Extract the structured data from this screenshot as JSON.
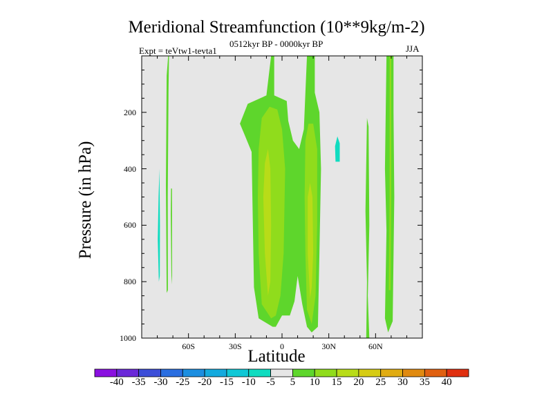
{
  "title": "Meridional Streamfunction (10**9kg/m-2)",
  "left_subtitle": "Expt = teVtw1-tevta1",
  "center_subtitle": "0512kyr BP - 0000kyr BP",
  "right_subtitle": "JJA",
  "chart_data": {
    "type": "heatmap",
    "title": "Meridional Streamfunction (10**9kg/m-2)",
    "xlabel": "Latitude",
    "ylabel": "Pressure (in hPa)",
    "xlim": [
      -90,
      90
    ],
    "ylim": [
      1000,
      0
    ],
    "xticks": [
      {
        "value": -60,
        "label": "60S"
      },
      {
        "value": -30,
        "label": "30S"
      },
      {
        "value": 0,
        "label": "0"
      },
      {
        "value": 30,
        "label": "30N"
      },
      {
        "value": 60,
        "label": "60N"
      }
    ],
    "yticks": [
      {
        "value": 200,
        "label": "200"
      },
      {
        "value": 400,
        "label": "400"
      },
      {
        "value": 600,
        "label": "600"
      },
      {
        "value": 800,
        "label": "800"
      },
      {
        "value": 1000,
        "label": "1000"
      }
    ],
    "background_color": "#e6e6e6",
    "colorbar": {
      "labels": [
        "-40",
        "-35",
        "-30",
        "-25",
        "-20",
        "-15",
        "-10",
        "-5",
        "5",
        "10",
        "15",
        "20",
        "25",
        "30",
        "35",
        "40"
      ],
      "colors": [
        "#8a10e0",
        "#6a28d8",
        "#3c4ed8",
        "#2a6ee0",
        "#1c8ee0",
        "#14aade",
        "#10c8d6",
        "#10dcc0",
        "#e6e6e6",
        "#5ed62c",
        "#90dc1c",
        "#b8dc18",
        "#d6cc14",
        "#e0ac12",
        "#e08a10",
        "#e06010",
        "#e03010"
      ]
    },
    "regions": [
      {
        "level": 5,
        "points": [
          [
            -74,
            840
          ],
          [
            -74.5,
            460
          ],
          [
            -74,
            70
          ],
          [
            -73,
            0
          ],
          [
            -72.5,
            0
          ],
          [
            -72.8,
            120
          ],
          [
            -73.3,
            500
          ],
          [
            -73.2,
            830
          ]
        ]
      },
      {
        "level": 5,
        "points": [
          [
            -71,
            760
          ],
          [
            -71.4,
            560
          ],
          [
            -71.2,
            470
          ],
          [
            -70.6,
            470
          ],
          [
            -70.5,
            780
          ],
          [
            -70.8,
            810
          ]
        ]
      },
      {
        "level": 5,
        "points": [
          [
            -6,
            960
          ],
          [
            -15,
            930
          ],
          [
            -18,
            820
          ],
          [
            -19,
            500
          ],
          [
            -19.5,
            340
          ],
          [
            -24,
            280
          ],
          [
            -27,
            240
          ],
          [
            -22,
            170
          ],
          [
            -10,
            140
          ],
          [
            -7,
            0
          ],
          [
            -5,
            0
          ],
          [
            -5,
            140
          ],
          [
            3,
            160
          ],
          [
            4,
            230
          ],
          [
            7,
            300
          ],
          [
            11,
            330
          ],
          [
            14,
            260
          ],
          [
            15,
            130
          ],
          [
            16,
            0
          ],
          [
            21,
            0
          ],
          [
            21,
            130
          ],
          [
            24,
            200
          ],
          [
            25,
            400
          ],
          [
            24,
            700
          ],
          [
            23,
            960
          ],
          [
            19,
            980
          ],
          [
            16,
            960
          ],
          [
            13,
            880
          ],
          [
            10,
            780
          ],
          [
            8,
            870
          ],
          [
            5,
            920
          ],
          [
            0,
            920
          ],
          [
            -4,
            960
          ]
        ]
      },
      {
        "level": 10,
        "points": [
          [
            -7,
            930
          ],
          [
            -13,
            880
          ],
          [
            -15,
            700
          ],
          [
            -15.5,
            500
          ],
          [
            -15,
            330
          ],
          [
            -13,
            220
          ],
          [
            -8,
            180
          ],
          [
            -3,
            190
          ],
          [
            0,
            260
          ],
          [
            2,
            400
          ],
          [
            1,
            700
          ],
          [
            -1,
            850
          ],
          [
            -4,
            920
          ]
        ]
      },
      {
        "level": 10,
        "points": [
          [
            19,
            950
          ],
          [
            16,
            900
          ],
          [
            15,
            700
          ],
          [
            14.5,
            500
          ],
          [
            15,
            300
          ],
          [
            17,
            240
          ],
          [
            20,
            240
          ],
          [
            22.5,
            330
          ],
          [
            22.5,
            600
          ],
          [
            21.5,
            850
          ]
        ]
      },
      {
        "level": 15,
        "points": [
          [
            -9,
            850
          ],
          [
            -11,
            700
          ],
          [
            -12,
            500
          ],
          [
            -11,
            380
          ],
          [
            -9,
            330
          ],
          [
            -7.5,
            400
          ],
          [
            -7,
            600
          ],
          [
            -7.5,
            800
          ]
        ]
      },
      {
        "level": 15,
        "points": [
          [
            18,
            860
          ],
          [
            16.5,
            700
          ],
          [
            16.5,
            500
          ],
          [
            18,
            450
          ],
          [
            19.5,
            500
          ],
          [
            20,
            700
          ],
          [
            19,
            820
          ]
        ]
      },
      {
        "level": 5,
        "points": [
          [
            54,
            1000
          ],
          [
            54.5,
            800
          ],
          [
            53.5,
            550
          ],
          [
            54.5,
            220
          ],
          [
            55.5,
            250
          ],
          [
            56,
            600
          ],
          [
            55,
            850
          ],
          [
            56,
            1000
          ]
        ]
      },
      {
        "level": 5,
        "points": [
          [
            66,
            930
          ],
          [
            67,
            620
          ],
          [
            66,
            400
          ],
          [
            67,
            0
          ],
          [
            71.5,
            0
          ],
          [
            71.5,
            200
          ],
          [
            72,
            500
          ],
          [
            71,
            940
          ],
          [
            68,
            980
          ]
        ]
      },
      {
        "level": 10,
        "points": [
          [
            68.5,
            830
          ],
          [
            69,
            500
          ],
          [
            69,
            0
          ],
          [
            70,
            0
          ],
          [
            70,
            500
          ],
          [
            69.6,
            830
          ]
        ]
      },
      {
        "level": -5,
        "points": [
          [
            -79,
            800
          ],
          [
            -79.7,
            650
          ],
          [
            -79.2,
            500
          ],
          [
            -78.6,
            400
          ],
          [
            -78.3,
            600
          ],
          [
            -78.4,
            780
          ]
        ]
      },
      {
        "level": -5,
        "points": [
          [
            34.3,
            375
          ],
          [
            34,
            320
          ],
          [
            35.5,
            285
          ],
          [
            37,
            310
          ],
          [
            37,
            375
          ]
        ]
      }
    ]
  }
}
